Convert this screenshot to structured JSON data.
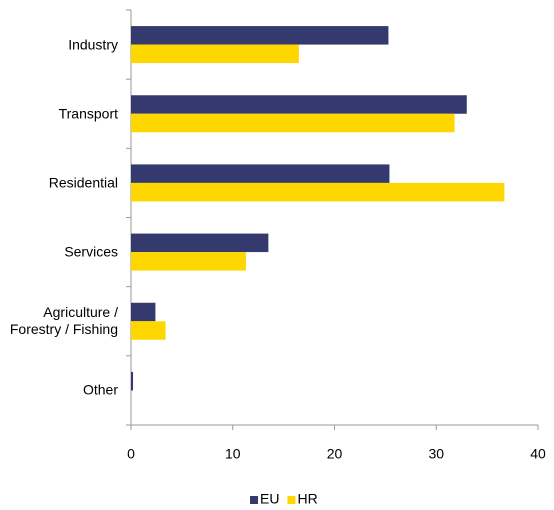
{
  "chart_data": {
    "type": "bar",
    "orientation": "horizontal",
    "categories": [
      "Industry",
      "Transport",
      "Residential",
      "Services",
      "Agriculture / Forestry / Fishing",
      "Other"
    ],
    "series": [
      {
        "name": "EU",
        "color": "#343a6e",
        "values": [
          25.3,
          33.0,
          25.4,
          13.5,
          2.4,
          0.2
        ]
      },
      {
        "name": "HR",
        "color": "#ffd700",
        "values": [
          16.5,
          31.8,
          36.7,
          11.3,
          3.4,
          0
        ]
      }
    ],
    "xlim": [
      0,
      40
    ],
    "xticks": [
      0,
      10,
      20,
      30,
      40
    ],
    "grid": false,
    "legend": "bottom"
  }
}
